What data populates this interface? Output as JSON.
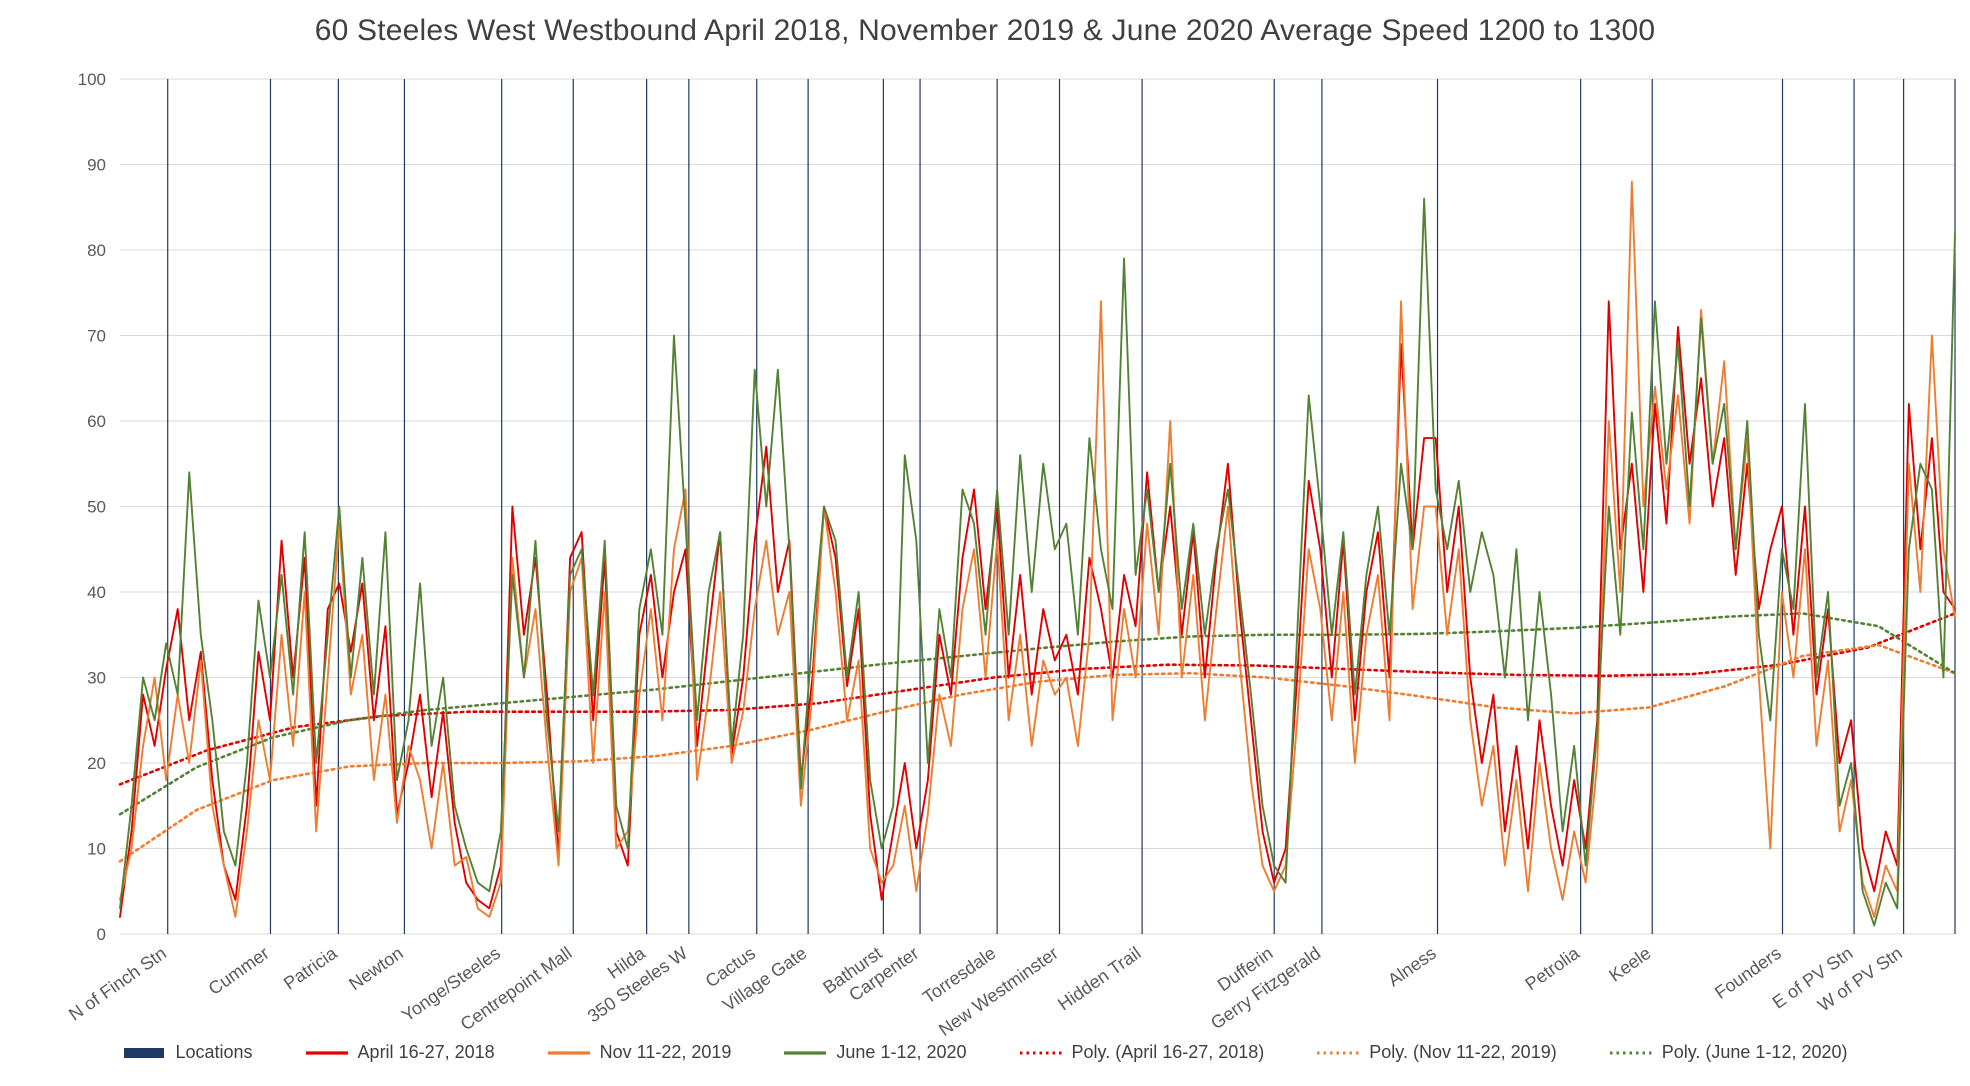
{
  "chart_data": {
    "type": "line",
    "title": "60 Steeles West Westbound April 2018, November 2019 & June 2020 Average Speed 1200 to 1300",
    "xlabel": "",
    "ylabel": "",
    "sampling": "each series is 160 evenly spaced speed samples left-to-right along the route",
    "y_axis": {
      "min": 0,
      "max": 100,
      "tick_interval": 10,
      "ticks": [
        0,
        10,
        20,
        30,
        40,
        50,
        60,
        70,
        80,
        90,
        100
      ]
    },
    "x_axis": {
      "label_rotation": -35,
      "locations": [
        {
          "name": "N of Finch Stn",
          "x_pct": 2.6
        },
        {
          "name": "Cummer",
          "x_pct": 8.2
        },
        {
          "name": "Patricia",
          "x_pct": 11.9
        },
        {
          "name": "Newton",
          "x_pct": 15.5
        },
        {
          "name": "Yonge/Steeles",
          "x_pct": 20.8
        },
        {
          "name": "Centrepoint Mall",
          "x_pct": 24.7
        },
        {
          "name": "Hilda",
          "x_pct": 28.7
        },
        {
          "name": "350 Steeles W",
          "x_pct": 31.0
        },
        {
          "name": "Cactus",
          "x_pct": 34.7
        },
        {
          "name": "Village Gate",
          "x_pct": 37.5
        },
        {
          "name": "Bathurst",
          "x_pct": 41.6
        },
        {
          "name": "Carpenter",
          "x_pct": 43.6
        },
        {
          "name": "Torresdale",
          "x_pct": 47.8
        },
        {
          "name": "New Westminster",
          "x_pct": 51.2
        },
        {
          "name": "Hidden Trail",
          "x_pct": 55.7
        },
        {
          "name": "Dufferin",
          "x_pct": 62.9
        },
        {
          "name": "Gerry Fitzgerald",
          "x_pct": 65.5
        },
        {
          "name": "Alness",
          "x_pct": 71.8
        },
        {
          "name": "Petrolia",
          "x_pct": 79.6
        },
        {
          "name": "Keele",
          "x_pct": 83.5
        },
        {
          "name": "Founders",
          "x_pct": 90.6
        },
        {
          "name": "E of PV Stn",
          "x_pct": 94.5
        },
        {
          "name": "W of PV Stn",
          "x_pct": 97.2
        },
        {
          "name": "",
          "x_pct": 100.0
        }
      ]
    },
    "series": [
      {
        "name": "April 16-27, 2018",
        "color": "#E00000",
        "style": "solid",
        "values": [
          2,
          12,
          28,
          22,
          31,
          38,
          25,
          33,
          18,
          8,
          4,
          15,
          33,
          25,
          46,
          30,
          44,
          15,
          38,
          41,
          33,
          41,
          25,
          36,
          14,
          20,
          28,
          16,
          26,
          13,
          6,
          4,
          3,
          8,
          50,
          35,
          44,
          28,
          9,
          44,
          47,
          25,
          44,
          12,
          8,
          35,
          42,
          30,
          40,
          45,
          22,
          35,
          47,
          21,
          30,
          46,
          57,
          40,
          46,
          18,
          30,
          50,
          44,
          29,
          38,
          14,
          4,
          12,
          20,
          10,
          18,
          35,
          28,
          44,
          52,
          38,
          50,
          30,
          42,
          28,
          38,
          32,
          35,
          28,
          44,
          38,
          30,
          42,
          36,
          54,
          40,
          50,
          35,
          47,
          30,
          44,
          55,
          38,
          25,
          12,
          6,
          10,
          30,
          53,
          45,
          30,
          46,
          25,
          40,
          47,
          30,
          69,
          45,
          58,
          58,
          40,
          50,
          30,
          20,
          28,
          12,
          22,
          10,
          25,
          15,
          8,
          18,
          10,
          25,
          74,
          45,
          55,
          40,
          62,
          48,
          71,
          55,
          65,
          50,
          58,
          42,
          55,
          38,
          45,
          50,
          35,
          50,
          28,
          38,
          20,
          25,
          10,
          5,
          12,
          8,
          62,
          45,
          58,
          40,
          38
        ]
      },
      {
        "name": "Nov 11-22, 2019",
        "color": "#ED7D31",
        "style": "solid",
        "values": [
          4,
          10,
          22,
          30,
          18,
          28,
          20,
          32,
          15,
          8,
          2,
          12,
          25,
          18,
          35,
          22,
          40,
          12,
          30,
          48,
          28,
          35,
          18,
          28,
          13,
          22,
          18,
          10,
          20,
          8,
          9,
          3,
          2,
          6,
          44,
          30,
          38,
          22,
          8,
          40,
          44,
          20,
          40,
          10,
          12,
          28,
          38,
          25,
          45,
          52,
          18,
          28,
          40,
          20,
          26,
          38,
          46,
          35,
          40,
          15,
          28,
          50,
          40,
          25,
          32,
          10,
          6,
          8,
          15,
          5,
          14,
          28,
          22,
          38,
          45,
          30,
          46,
          25,
          35,
          22,
          32,
          28,
          30,
          22,
          35,
          74,
          25,
          38,
          30,
          48,
          35,
          60,
          30,
          42,
          25,
          38,
          50,
          32,
          18,
          8,
          5,
          8,
          25,
          45,
          38,
          25,
          40,
          20,
          35,
          42,
          25,
          74,
          38,
          50,
          50,
          35,
          45,
          25,
          15,
          22,
          8,
          18,
          5,
          20,
          10,
          4,
          12,
          6,
          20,
          60,
          40,
          88,
          50,
          64,
          52,
          63,
          48,
          73,
          55,
          67,
          45,
          58,
          30,
          10,
          40,
          30,
          45,
          22,
          32,
          12,
          18,
          6,
          2,
          8,
          5,
          55,
          40,
          70,
          45,
          37
        ]
      },
      {
        "name": "June 1-12, 2020",
        "color": "#548235",
        "style": "solid",
        "values": [
          3,
          15,
          30,
          25,
          34,
          28,
          54,
          35,
          25,
          12,
          8,
          20,
          39,
          30,
          42,
          28,
          47,
          20,
          35,
          50,
          30,
          44,
          28,
          47,
          18,
          25,
          41,
          22,
          30,
          15,
          10,
          6,
          5,
          12,
          42,
          30,
          46,
          25,
          12,
          42,
          45,
          28,
          46,
          15,
          10,
          38,
          45,
          35,
          70,
          48,
          25,
          40,
          47,
          22,
          35,
          66,
          50,
          66,
          45,
          17,
          35,
          50,
          46,
          30,
          40,
          18,
          10,
          15,
          56,
          46,
          20,
          38,
          30,
          52,
          48,
          35,
          52,
          35,
          56,
          40,
          55,
          45,
          48,
          35,
          58,
          45,
          38,
          79,
          42,
          52,
          40,
          55,
          38,
          48,
          35,
          45,
          52,
          40,
          28,
          15,
          8,
          6,
          35,
          63,
          50,
          35,
          47,
          28,
          42,
          50,
          35,
          55,
          45,
          86,
          52,
          45,
          53,
          40,
          47,
          42,
          30,
          45,
          25,
          40,
          28,
          12,
          22,
          8,
          24,
          50,
          35,
          61,
          45,
          74,
          55,
          69,
          50,
          72,
          55,
          62,
          45,
          60,
          35,
          25,
          45,
          38,
          62,
          30,
          40,
          15,
          20,
          5,
          1,
          6,
          3,
          45,
          55,
          52,
          30,
          82
        ]
      }
    ],
    "trend_series": [
      {
        "name": "Poly. (April 16-27, 2018)",
        "color": "#E00000",
        "style": "dotted",
        "values": [
          17.5,
          21.5,
          24.2,
          25.5,
          26,
          26,
          26,
          26.2,
          27,
          28.5,
          30,
          31,
          31.5,
          31.4,
          31,
          30.6,
          30.3,
          30.2,
          30.4,
          31.5,
          33.5,
          37.5
        ]
      },
      {
        "name": "Poly. (Nov 11-22, 2019)",
        "color": "#ED7D31",
        "style": "dotted",
        "values": [
          8.5,
          14.5,
          18,
          19.6,
          20,
          20,
          20.2,
          20.8,
          22,
          23.8,
          26,
          28,
          29.5,
          30.3,
          30.5,
          30,
          29,
          27.8,
          26.5,
          25.8,
          26.5,
          29,
          32.5,
          33.8,
          30.5
        ]
      },
      {
        "name": "Poly. (June 1-12, 2020)",
        "color": "#548235",
        "style": "dotted",
        "values": [
          14,
          19.5,
          23,
          25,
          26.2,
          27,
          27.8,
          28.6,
          29.6,
          30.6,
          31.6,
          32.5,
          33.4,
          34.2,
          34.8,
          35,
          35,
          35.1,
          35.4,
          35.8,
          36.4,
          37.1,
          37.5,
          36,
          30.5
        ]
      }
    ]
  },
  "legend": [
    {
      "id": "locations",
      "label": "Locations",
      "color": "#1F3864",
      "swatch": "block"
    },
    {
      "id": "april-2018",
      "label": "April 16-27, 2018",
      "color": "#E00000",
      "swatch": "line"
    },
    {
      "id": "nov-2019",
      "label": "Nov 11-22, 2019",
      "color": "#ED7D31",
      "swatch": "line"
    },
    {
      "id": "june-2020",
      "label": "June 1-12, 2020",
      "color": "#548235",
      "swatch": "line"
    },
    {
      "id": "poly-april-2018",
      "label": "Poly. (April 16-27, 2018)",
      "color": "#E00000",
      "swatch": "dotted"
    },
    {
      "id": "poly-nov-2019",
      "label": "Poly. (Nov 11-22, 2019)",
      "color": "#ED7D31",
      "swatch": "dotted"
    },
    {
      "id": "poly-june-2020",
      "label": "Poly. (June 1-12, 2020)",
      "color": "#548235",
      "swatch": "dotted"
    }
  ],
  "colors": {
    "series_april": "#E00000",
    "series_nov": "#ED7D31",
    "series_june": "#548235",
    "location_gridline": "#1F3864",
    "y_gridline": "#D9D9D9",
    "axis_text": "#595959",
    "title_text": "#404040",
    "background": "#FFFFFF"
  }
}
